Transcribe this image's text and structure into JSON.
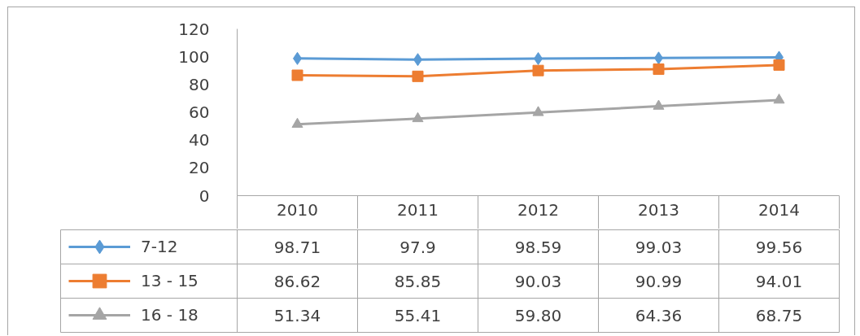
{
  "chart_data": {
    "type": "line",
    "categories": [
      "2010",
      "2011",
      "2012",
      "2013",
      "2014"
    ],
    "series": [
      {
        "name": "7-12",
        "color": "#5b9bd5",
        "marker": "diamond",
        "values": [
          98.71,
          97.9,
          98.59,
          99.03,
          99.56
        ],
        "value_labels": [
          "98.71",
          "97.9",
          "98.59",
          "99.03",
          "99.56"
        ]
      },
      {
        "name": "13 - 15",
        "color": "#ed7d31",
        "marker": "square",
        "values": [
          86.62,
          85.85,
          90.03,
          90.99,
          94.01
        ],
        "value_labels": [
          "86.62",
          "85.85",
          "90.03",
          "90.99",
          "94.01"
        ]
      },
      {
        "name": "16 - 18",
        "color": "#a5a5a5",
        "marker": "triangle",
        "values": [
          51.34,
          55.41,
          59.8,
          64.36,
          68.75
        ],
        "value_labels": [
          "51.34",
          "55.41",
          "59.80",
          "64.36",
          "68.75"
        ]
      }
    ],
    "ylim": [
      0,
      120
    ],
    "yticks": [
      0,
      20,
      40,
      60,
      80,
      100,
      120
    ],
    "grid": false,
    "legend": "bottom",
    "line_style": "solid"
  }
}
